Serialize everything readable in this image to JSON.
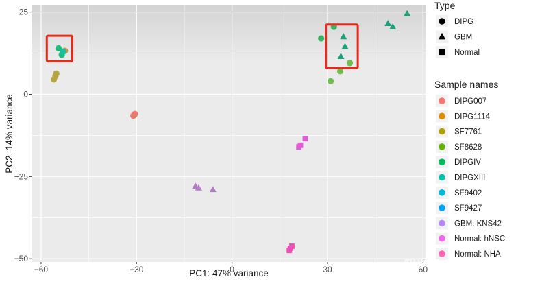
{
  "chart_data": {
    "type": "scatter",
    "xlabel": "PC1: 47% variance",
    "ylabel": "PC2: 14% variance",
    "xlim": [
      -63,
      61
    ],
    "ylim": [
      -51,
      27
    ],
    "xticks": [
      -60,
      -30,
      0,
      30,
      60
    ],
    "xtick_labels": [
      "−60",
      "−30",
      "0",
      "30",
      "60"
    ],
    "yticks": [
      -50,
      -25,
      0,
      25
    ],
    "ytick_labels": [
      "−50",
      "−25",
      "0",
      "25"
    ],
    "grid": true,
    "legend_placement": "right",
    "shape_legend": {
      "title": "Type",
      "items": [
        {
          "label": "DIPG",
          "shape": "circle"
        },
        {
          "label": "GBM",
          "shape": "triangle"
        },
        {
          "label": "Normal",
          "shape": "square"
        }
      ]
    },
    "color_legend": {
      "title": "Sample names",
      "items": [
        {
          "label": "DIPG007",
          "color": "#F8766D"
        },
        {
          "label": "DIPG1114",
          "color": "#DB8E00"
        },
        {
          "label": "SF7761",
          "color": "#AEA200"
        },
        {
          "label": "SF8628",
          "color": "#64B200"
        },
        {
          "label": "DIPGIV",
          "color": "#00BD5C"
        },
        {
          "label": "DIPGXIII",
          "color": "#00C1A7"
        },
        {
          "label": "SF9402",
          "color": "#00BADE"
        },
        {
          "label": "SF9427",
          "color": "#00A6FF"
        },
        {
          "label": "GBM: KNS42",
          "color": "#B385FF"
        },
        {
          "label": "Normal: hNSC",
          "color": "#EF67EB"
        },
        {
          "label": "Normal: NHA",
          "color": "#FF63B6"
        }
      ]
    },
    "series": [
      {
        "name": "DIPG007",
        "shape": "circle",
        "color": "#E87A6C",
        "points": [
          [
            -31,
            -6.5
          ],
          [
            -30.5,
            -6
          ]
        ]
      },
      {
        "name": "DIPG1114",
        "shape": "circle",
        "color": "#E08E3C",
        "points": [
          [
            -52.5,
            13.2
          ]
        ]
      },
      {
        "name": "SF7761",
        "shape": "circle",
        "color": "#B5A542",
        "points": [
          [
            -56,
            4.5
          ],
          [
            -55.5,
            5.5
          ],
          [
            -55.2,
            6.3
          ]
        ]
      },
      {
        "name": "SF8628",
        "shape": "circle",
        "color": "#6FBC4F",
        "points": [
          [
            31,
            4
          ],
          [
            34,
            7
          ],
          [
            37,
            9.5
          ]
        ]
      },
      {
        "name": "DIPGIV",
        "shape": "circle",
        "color": "#1FBE7C",
        "points": [
          [
            -54.5,
            14
          ],
          [
            -53.5,
            12
          ]
        ]
      },
      {
        "name": "DIPGXIII",
        "shape": "circle",
        "color": "#19BFA0",
        "points": [
          [
            -53,
            13
          ]
        ]
      },
      {
        "name": "SF9402",
        "shape": "circle",
        "color": "#3DB366",
        "points": [
          [
            28,
            17
          ],
          [
            32,
            20.5
          ]
        ]
      },
      {
        "name": "SF9427",
        "shape": "triangle",
        "color": "#1FA07A",
        "points": [
          [
            35,
            17.5
          ],
          [
            35.5,
            14.5
          ],
          [
            34.2,
            11.5
          ],
          [
            49,
            21.5
          ],
          [
            50.5,
            20.5
          ],
          [
            55,
            24.5
          ]
        ]
      },
      {
        "name": "GBM: KNS42",
        "shape": "triangle",
        "color": "#B07CC4",
        "points": [
          [
            -11.5,
            -28
          ],
          [
            -10.5,
            -28.5
          ],
          [
            -6,
            -29
          ]
        ]
      },
      {
        "name": "Normal: hNSC",
        "shape": "square",
        "color": "#E25CD8",
        "points": [
          [
            21,
            -16
          ],
          [
            21.5,
            -15.5
          ],
          [
            23,
            -13.5
          ]
        ]
      },
      {
        "name": "Normal: NHA",
        "shape": "square",
        "color": "#EC4FB4",
        "points": [
          [
            18,
            -47.5
          ],
          [
            18.3,
            -46.8
          ],
          [
            18.8,
            -46.2
          ]
        ]
      }
    ],
    "annotations": {
      "highlight_color": "#E8291C"
    }
  },
  "watermark": "知乎 @Gremmie"
}
